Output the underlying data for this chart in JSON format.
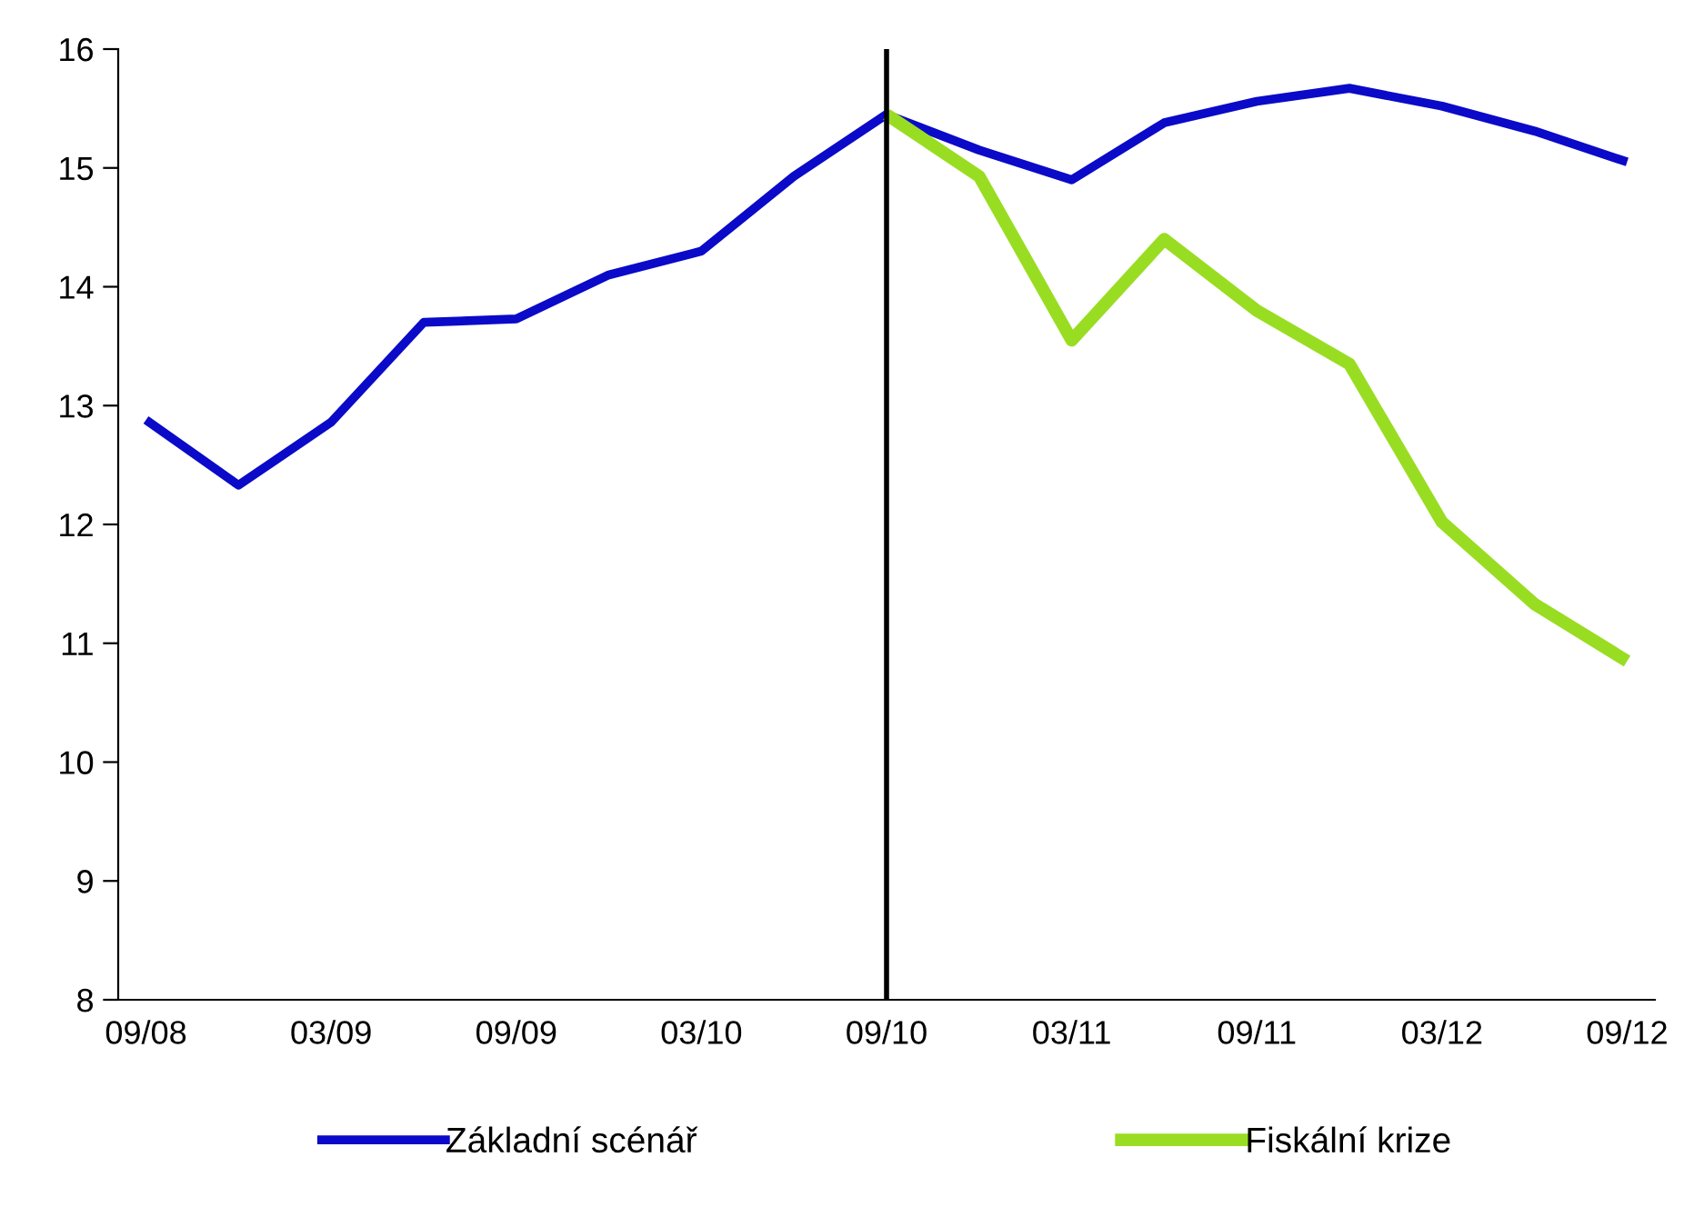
{
  "chart_data": {
    "type": "line",
    "categories": [
      "09/08",
      null,
      "03/09",
      null,
      "09/09",
      null,
      "03/10",
      null,
      "09/10",
      null,
      "03/11",
      null,
      "09/11",
      null,
      "03/12",
      null,
      "09/12"
    ],
    "series": [
      {
        "name": "Základní scénář",
        "color": "#0a0ac8",
        "values": [
          12.88,
          12.33,
          12.86,
          13.7,
          13.73,
          14.1,
          14.3,
          14.93,
          15.45,
          15.15,
          14.9,
          15.38,
          15.56,
          15.67,
          15.52,
          15.31,
          15.05
        ]
      },
      {
        "name": "Fiskální krize",
        "color": "#99dd22",
        "values": [
          null,
          null,
          null,
          null,
          null,
          null,
          null,
          null,
          15.45,
          14.93,
          13.55,
          14.4,
          13.8,
          13.35,
          12.02,
          11.33,
          10.85
        ]
      }
    ],
    "ylim": [
      8,
      16
    ],
    "yticks": [
      8,
      9,
      10,
      11,
      12,
      13,
      14,
      15,
      16
    ],
    "ref_lines": [
      {
        "axis": "x",
        "value": "09/10",
        "color": "#000000"
      }
    ],
    "legend": "bottom",
    "grid": false,
    "marker": "none",
    "line_style": "solid"
  }
}
